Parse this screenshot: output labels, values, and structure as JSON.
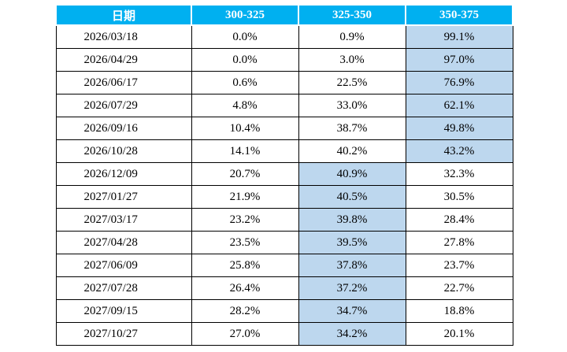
{
  "colors": {
    "header_bg": "#00B0F0",
    "header_text": "#FFFFFF",
    "highlight_bg": "#BDD7EE",
    "border": "#000000",
    "page_bg": "#FFFFFF"
  },
  "table": {
    "headers": [
      "日期",
      "300-325",
      "325-350",
      "350-375"
    ],
    "rows": [
      {
        "date": "2026/03/18",
        "values": [
          "0.0%",
          "0.9%",
          "99.1%"
        ],
        "highlight": 2
      },
      {
        "date": "2026/04/29",
        "values": [
          "0.0%",
          "3.0%",
          "97.0%"
        ],
        "highlight": 2
      },
      {
        "date": "2026/06/17",
        "values": [
          "0.6%",
          "22.5%",
          "76.9%"
        ],
        "highlight": 2
      },
      {
        "date": "2026/07/29",
        "values": [
          "4.8%",
          "33.0%",
          "62.1%"
        ],
        "highlight": 2
      },
      {
        "date": "2026/09/16",
        "values": [
          "10.4%",
          "38.7%",
          "49.8%"
        ],
        "highlight": 2
      },
      {
        "date": "2026/10/28",
        "values": [
          "14.1%",
          "40.2%",
          "43.2%"
        ],
        "highlight": 2
      },
      {
        "date": "2026/12/09",
        "values": [
          "20.7%",
          "40.9%",
          "32.3%"
        ],
        "highlight": 1
      },
      {
        "date": "2027/01/27",
        "values": [
          "21.9%",
          "40.5%",
          "30.5%"
        ],
        "highlight": 1
      },
      {
        "date": "2027/03/17",
        "values": [
          "23.2%",
          "39.8%",
          "28.4%"
        ],
        "highlight": 1
      },
      {
        "date": "2027/04/28",
        "values": [
          "23.5%",
          "39.5%",
          "27.8%"
        ],
        "highlight": 1
      },
      {
        "date": "2027/06/09",
        "values": [
          "25.8%",
          "37.8%",
          "23.7%"
        ],
        "highlight": 1
      },
      {
        "date": "2027/07/28",
        "values": [
          "26.4%",
          "37.2%",
          "22.7%"
        ],
        "highlight": 1
      },
      {
        "date": "2027/09/15",
        "values": [
          "28.2%",
          "34.7%",
          "18.8%"
        ],
        "highlight": 1
      },
      {
        "date": "2027/10/27",
        "values": [
          "27.0%",
          "34.2%",
          "20.1%"
        ],
        "highlight": 1
      }
    ]
  },
  "chart_data": {
    "type": "table",
    "title": "",
    "columns": [
      "日期",
      "300-325",
      "325-350",
      "350-375"
    ],
    "unit": "%",
    "rows": [
      [
        "2026/03/18",
        0.0,
        0.9,
        99.1
      ],
      [
        "2026/04/29",
        0.0,
        3.0,
        97.0
      ],
      [
        "2026/06/17",
        0.6,
        22.5,
        76.9
      ],
      [
        "2026/07/29",
        4.8,
        33.0,
        62.1
      ],
      [
        "2026/09/16",
        10.4,
        38.7,
        49.8
      ],
      [
        "2026/10/28",
        14.1,
        40.2,
        43.2
      ],
      [
        "2026/12/09",
        20.7,
        40.9,
        32.3
      ],
      [
        "2027/01/27",
        21.9,
        40.5,
        30.5
      ],
      [
        "2027/03/17",
        23.2,
        39.8,
        28.4
      ],
      [
        "2027/04/28",
        23.5,
        39.5,
        27.8
      ],
      [
        "2027/06/09",
        25.8,
        37.8,
        23.7
      ],
      [
        "2027/07/28",
        26.4,
        37.2,
        22.7
      ],
      [
        "2027/09/15",
        28.2,
        34.7,
        18.8
      ],
      [
        "2027/10/27",
        27.0,
        34.2,
        20.1
      ]
    ],
    "highlight_rule": "max probability cell per row shaded light blue"
  }
}
